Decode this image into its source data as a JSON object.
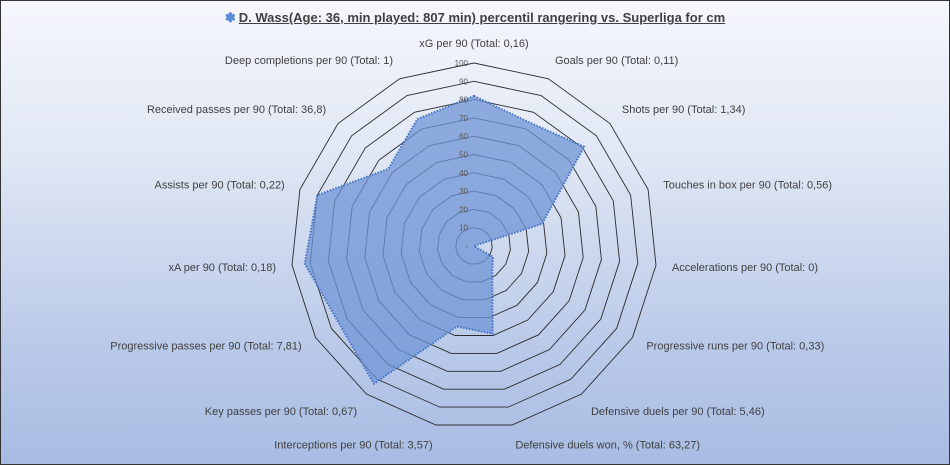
{
  "chart_data": {
    "type": "radar",
    "title": "D. Wass(Age: 36, min played: 807 min) percentil rangering vs. Superliga for cm",
    "title_icon": "flower-icon",
    "categories": [
      "xG per 90 (Total: 0,16)",
      "Goals per 90 (Total: 0,11)",
      "Shots per 90 (Total: 1,34)",
      "Touches in box per 90 (Total: 0,56)",
      "Accelerations per 90 (Total: 0)",
      "Progressive runs per 90 (Total: 0,33)",
      "Defensive duels per 90 (Total: 5,46)",
      "Defensive duels won, % (Total: 63,27)",
      "Interceptions per 90 (Total: 3,57)",
      "Key passes per 90 (Total: 0,67)",
      "Progressive passes per 90 (Total: 7,81)",
      "xA per 90 (Total: 0,18)",
      "Assists per 90 (Total: 0,22)",
      "Received passes per 90 (Total: 36,8)",
      "Deep completions per 90 (Total: 1)"
    ],
    "values": [
      82,
      74,
      81,
      39,
      0,
      12,
      17,
      49,
      45,
      93,
      85,
      93,
      90,
      63,
      76
    ],
    "rlim": [
      0,
      100
    ],
    "ticks": [
      "-",
      "10",
      "20",
      "30",
      "40",
      "50",
      "60",
      "70",
      "80",
      "90",
      "100"
    ],
    "colors": {
      "fill": "#6f94d6",
      "line": "#4472c4",
      "grid": "#2b2b2b"
    }
  }
}
